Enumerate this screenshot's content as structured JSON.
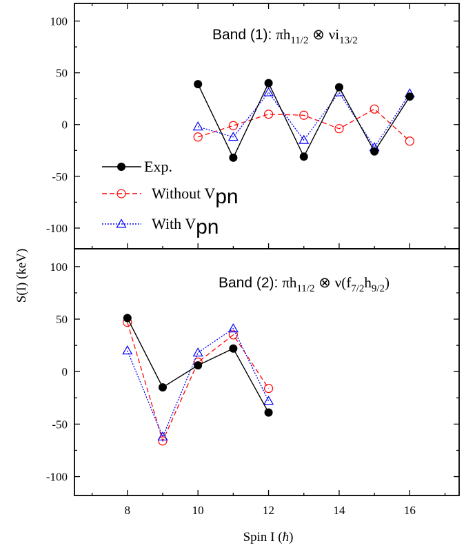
{
  "chart_data": {
    "type": "line",
    "ylabel_main": "S(I) (keV)",
    "xlabel_prefix": "Spin I (",
    "xlabel_symbol": "ħ",
    "xlabel_suffix": ")",
    "xlim": [
      6.5,
      17.4
    ],
    "x_ticks": [
      8,
      10,
      12,
      14,
      16
    ],
    "x_tick_labels": [
      "8",
      "10",
      "12",
      "14",
      "16"
    ],
    "legend": {
      "placement": "lower-left of top panel",
      "entries": [
        {
          "series": "exp",
          "label": "Exp.",
          "sub": ""
        },
        {
          "series": "without",
          "label": "Without V",
          "sub": "pn"
        },
        {
          "series": "with",
          "label": "With V",
          "sub": "pn"
        }
      ]
    },
    "series_styles": {
      "exp": {
        "color": "#000000",
        "marker": "filled-circle",
        "line": "solid"
      },
      "without": {
        "color": "#ff0000",
        "marker": "open-circle",
        "line": "dashed"
      },
      "with": {
        "color": "#0000ff",
        "marker": "open-triangle",
        "line": "dotted"
      }
    },
    "panels": [
      {
        "title_parts": {
          "pre": "Band (1): ",
          "sym": "πh",
          "s1": "11/2",
          "mid": " ⊗ ",
          "sym2": "νi",
          "s2": "13/2",
          "mid2": "",
          "s3": "",
          "post": ""
        },
        "ylim": [
          -120,
          117
        ],
        "y_ticks": [
          -100,
          -50,
          0,
          50,
          100
        ],
        "y_tick_labels": [
          "-100",
          "-50",
          "0",
          "50",
          "100"
        ],
        "series": [
          {
            "key": "exp",
            "x": [
              10,
              11,
              12,
              13,
              14,
              15,
              16
            ],
            "y": [
              39,
              -32,
              40,
              -31,
              36,
              -26,
              27
            ]
          },
          {
            "key": "without",
            "x": [
              10,
              11,
              12,
              13,
              14,
              15,
              16
            ],
            "y": [
              -12,
              -1,
              10,
              9,
              -4,
              15,
              -16
            ]
          },
          {
            "key": "with",
            "x": [
              10,
              11,
              12,
              13,
              14,
              15,
              16
            ],
            "y": [
              -2,
              -12,
              31,
              -15,
              31,
              -22,
              30
            ]
          }
        ]
      },
      {
        "title_parts": {
          "pre": "Band (2): ",
          "sym": "πh",
          "s1": "11/2",
          "mid": " ⊗ ",
          "sym2": "ν(f",
          "s2": "7/2",
          "mid2": "h",
          "s3": "9/2",
          "post": ")"
        },
        "ylim": [
          -118,
          117
        ],
        "y_ticks": [
          -100,
          -50,
          0,
          50,
          100
        ],
        "y_tick_labels": [
          "-100",
          "-50",
          "0",
          "50",
          "100"
        ],
        "series": [
          {
            "key": "exp",
            "x": [
              8,
              9,
              10,
              11,
              12
            ],
            "y": [
              51,
              -15,
              6,
              22,
              -39
            ]
          },
          {
            "key": "without",
            "x": [
              8,
              9,
              10,
              11,
              12
            ],
            "y": [
              47,
              -66,
              9,
              35,
              -16
            ]
          },
          {
            "key": "with",
            "x": [
              8,
              9,
              10,
              11,
              12
            ],
            "y": [
              20,
              -62,
              18,
              41,
              -28
            ]
          }
        ]
      }
    ]
  }
}
